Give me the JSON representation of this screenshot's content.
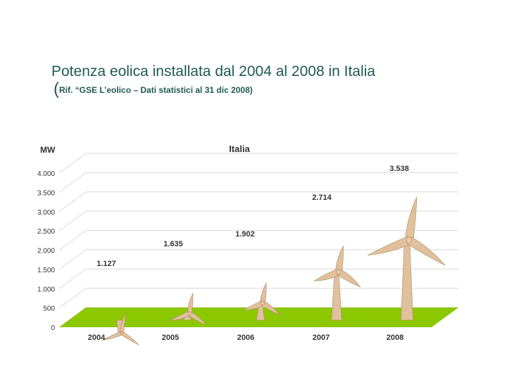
{
  "slide": {
    "title": "Potenza eolica installata dal 2004 al 2008 in Italia",
    "subtitle_paren": "(",
    "subtitle": "Rif. “GSE L’eolico – Dati statistici al 31 dic 2008)"
  },
  "chart_data": {
    "type": "bar",
    "mark_style": "wind-turbine pictogram (height = value)",
    "title": "Italia",
    "ylabel": "MW",
    "xlabel": "",
    "categories": [
      "2004",
      "2005",
      "2006",
      "2007",
      "2008"
    ],
    "values": [
      1127,
      1635,
      1902,
      2714,
      3538
    ],
    "data_labels": [
      "1.127",
      "1.635",
      "1.902",
      "2.714",
      "3.538"
    ],
    "yticks": [
      0,
      500,
      1000,
      1500,
      2000,
      2500,
      3000,
      3500,
      4000
    ],
    "ytick_labels": [
      "0",
      "500",
      "1.000",
      "1.500",
      "2.000",
      "2.500",
      "3.000",
      "3.500",
      "4.000"
    ],
    "ylim": [
      0,
      4000
    ],
    "grid": true,
    "legend": "none",
    "colors": {
      "title_text": "#1f5a52",
      "floor": "#8cc800",
      "turbine": "#e0c19e",
      "turbine_edge": "#b8916a",
      "grid": "#d9d9d9",
      "axis_text": "#333333"
    }
  }
}
